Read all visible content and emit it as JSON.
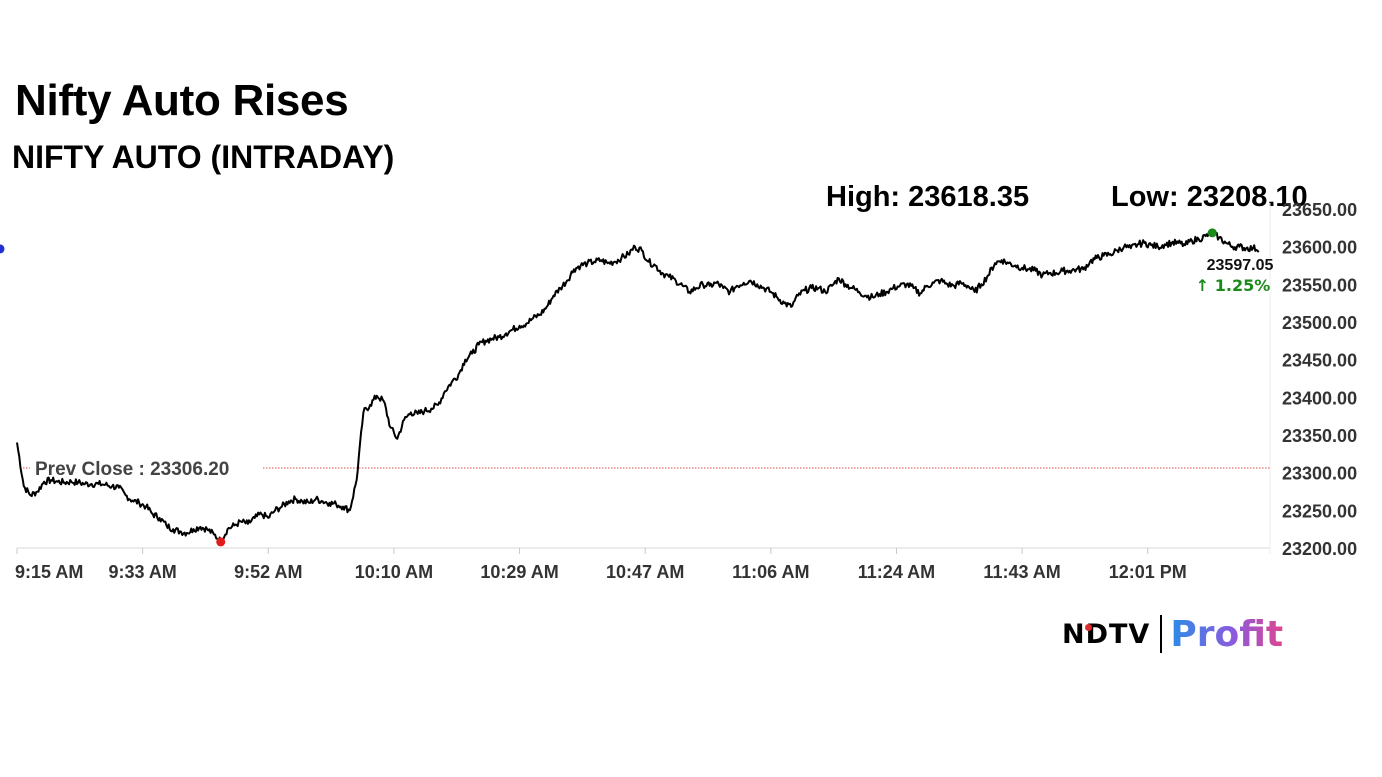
{
  "headline": "Nifty Auto Rises",
  "chart_data": {
    "type": "line",
    "title": "NIFTY AUTO (INTRADAY)",
    "high_label": "High: 23618.35",
    "low_label": "Low: 23208.10",
    "high": 23618.35,
    "low": 23208.1,
    "last": {
      "value": 23597.05,
      "label": "23597.05",
      "change_label": "↑ 1.25%"
    },
    "prev_close": {
      "value": 23306.2,
      "label": "Prev Close : 23306.20"
    },
    "ylim": [
      23200,
      23650
    ],
    "yticks": [
      "23200.00",
      "23250.00",
      "23300.00",
      "23350.00",
      "23400.00",
      "23450.00",
      "23500.00",
      "23550.00",
      "23600.00",
      "23650.00"
    ],
    "xticks": [
      "9:15 AM",
      "9:33 AM",
      "9:52 AM",
      "10:10 AM",
      "10:29 AM",
      "10:47 AM",
      "11:06 AM",
      "11:24 AM",
      "11:43 AM",
      "12:01 PM"
    ],
    "x_start": "9:15 AM",
    "series": [
      {
        "time_min": [
          0,
          1,
          2,
          3,
          4,
          5,
          6,
          7,
          8,
          9,
          10,
          11,
          12,
          13,
          14,
          15,
          16,
          17,
          18,
          19,
          20,
          21,
          22,
          23,
          24,
          25,
          26,
          27,
          28,
          29,
          30,
          31,
          32,
          33,
          34,
          35,
          36,
          37,
          38,
          39,
          40,
          41,
          42,
          43,
          44,
          45,
          46,
          47,
          48,
          49,
          50,
          51,
          52,
          53,
          54,
          55,
          56,
          57,
          58,
          59,
          60,
          61,
          62,
          63,
          64,
          65,
          66,
          67,
          68,
          69,
          70,
          71,
          72,
          73,
          74,
          75,
          76,
          77,
          78,
          79,
          80,
          81,
          82,
          83,
          84,
          85,
          86,
          87,
          88,
          89,
          90,
          91,
          92,
          93,
          94,
          95,
          96,
          97,
          98,
          99,
          100,
          101,
          102,
          103,
          104,
          105,
          106,
          107,
          108,
          109,
          110,
          111,
          112,
          113,
          114,
          115,
          116,
          117,
          118,
          119,
          120,
          121,
          122,
          123,
          124,
          125,
          126,
          127,
          128,
          129,
          130,
          131,
          132,
          133,
          134,
          135,
          136,
          137,
          138,
          139,
          140,
          141,
          142,
          143,
          144,
          145,
          146,
          147,
          148,
          149,
          150,
          151,
          152,
          153,
          154,
          155,
          156,
          157,
          158,
          159,
          160,
          161,
          162,
          163,
          164,
          165,
          166,
          167,
          168,
          169,
          170,
          171,
          172,
          173,
          174,
          175,
          176,
          177,
          178,
          179,
          180,
          181,
          182
        ],
        "values": [
          23340,
          23282,
          23270,
          23275,
          23288,
          23290,
          23288,
          23287,
          23288,
          23287,
          23285,
          23285,
          23285,
          23284,
          23282,
          23280,
          23270,
          23263,
          23260,
          23255,
          23245,
          23240,
          23230,
          23225,
          23222,
          23220,
          23225,
          23228,
          23225,
          23218,
          23209,
          23225,
          23230,
          23235,
          23232,
          23240,
          23245,
          23240,
          23250,
          23255,
          23262,
          23265,
          23262,
          23260,
          23265,
          23262,
          23260,
          23258,
          23255,
          23250,
          23290,
          23380,
          23390,
          23402,
          23395,
          23360,
          23345,
          23370,
          23380,
          23378,
          23382,
          23385,
          23390,
          23408,
          23420,
          23430,
          23450,
          23458,
          23470,
          23475,
          23478,
          23480,
          23485,
          23490,
          23495,
          23498,
          23505,
          23510,
          23520,
          23535,
          23545,
          23555,
          23570,
          23575,
          23578,
          23580,
          23582,
          23578,
          23580,
          23585,
          23590,
          23600,
          23595,
          23580,
          23575,
          23565,
          23560,
          23555,
          23548,
          23540,
          23545,
          23550,
          23548,
          23552,
          23545,
          23540,
          23548,
          23552,
          23555,
          23550,
          23545,
          23540,
          23532,
          23525,
          23520,
          23535,
          23542,
          23545,
          23545,
          23540,
          23548,
          23558,
          23550,
          23545,
          23540,
          23535,
          23533,
          23537,
          23540,
          23545,
          23548,
          23550,
          23545,
          23538,
          23548,
          23552,
          23555,
          23550,
          23548,
          23552,
          23548,
          23540,
          23550,
          23562,
          23578,
          23582,
          23578,
          23575,
          23572,
          23570,
          23568,
          23562,
          23565,
          23565,
          23568,
          23568,
          23570,
          23570,
          23580,
          23585,
          23588,
          23590,
          23595,
          23600,
          23598,
          23603,
          23605,
          23602,
          23600,
          23603,
          23605,
          23605,
          23602,
          23608,
          23610,
          23614,
          23618,
          23612,
          23605,
          23600,
          23600,
          23598,
          23598,
          23597
        ]
      }
    ],
    "colors": {
      "line": "#000000",
      "prev_close": "#e04b4b",
      "high_marker": "#1a8a1a",
      "low_marker": "#e01b1b",
      "last_marker": "#1f2fd0",
      "change": "#1a8a1a"
    }
  },
  "brand": {
    "ndtv": "NDTV",
    "profit": "Profit"
  }
}
